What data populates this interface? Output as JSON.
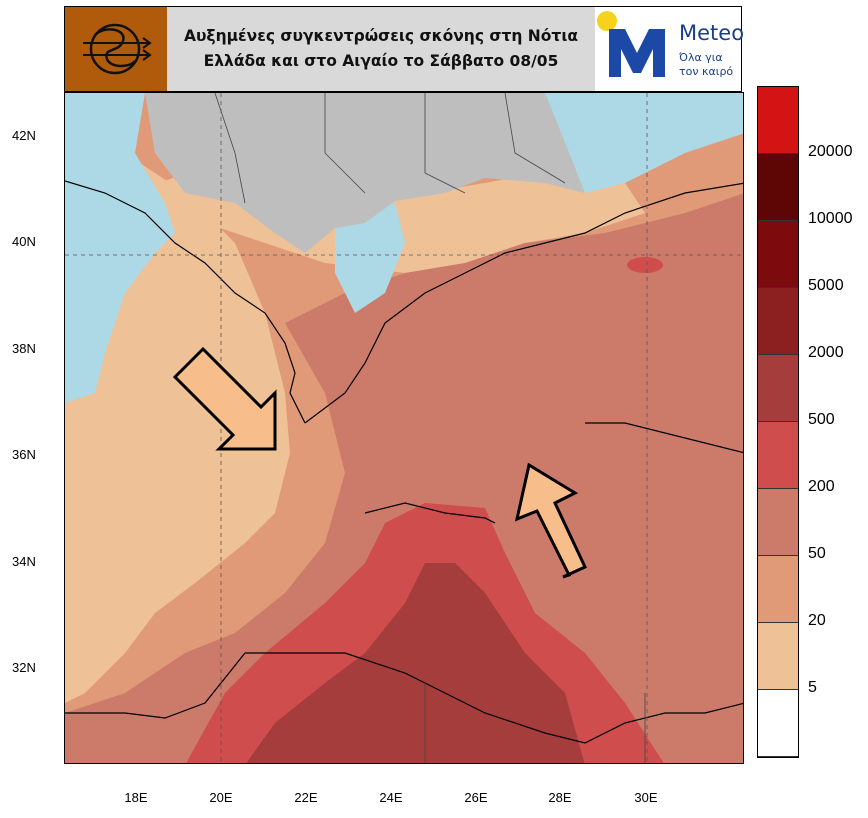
{
  "header": {
    "title_line1": "Αυξημένες συγκεντρώσεις σκόνης στη Νότια",
    "title_line2": "Ελλάδα και στο Αιγαίο το Σάββατο 08/05"
  },
  "brand": {
    "name": "Meteo",
    "tagline_line1": "Όλα για",
    "tagline_line2": "τον καιρό",
    "logo_icon": "storm-spiral-icon"
  },
  "map": {
    "lat_labels": [
      "42N",
      "40N",
      "38N",
      "36N",
      "34N",
      "32N"
    ],
    "lon_labels": [
      "18E",
      "20E",
      "22E",
      "24E",
      "26E",
      "28E",
      "30E"
    ],
    "arrows": [
      "wind-arrow-west",
      "wind-arrow-southeast"
    ]
  },
  "legend": {
    "labels": [
      "20000",
      "10000",
      "5000",
      "2000",
      "500",
      "200",
      "50",
      "20",
      "5"
    ],
    "colors": [
      "#d41414",
      "#5e0506",
      "#7d0a0c",
      "#8c1f1f",
      "#a63d3d",
      "#cf4d4d",
      "#cc7a6a",
      "#e09a78",
      "#efc196",
      "#ffffff"
    ]
  },
  "colors": {
    "sea": "#add8e6",
    "land_outside": "#bebebe",
    "arrow_fill": "#f7bd8a"
  }
}
